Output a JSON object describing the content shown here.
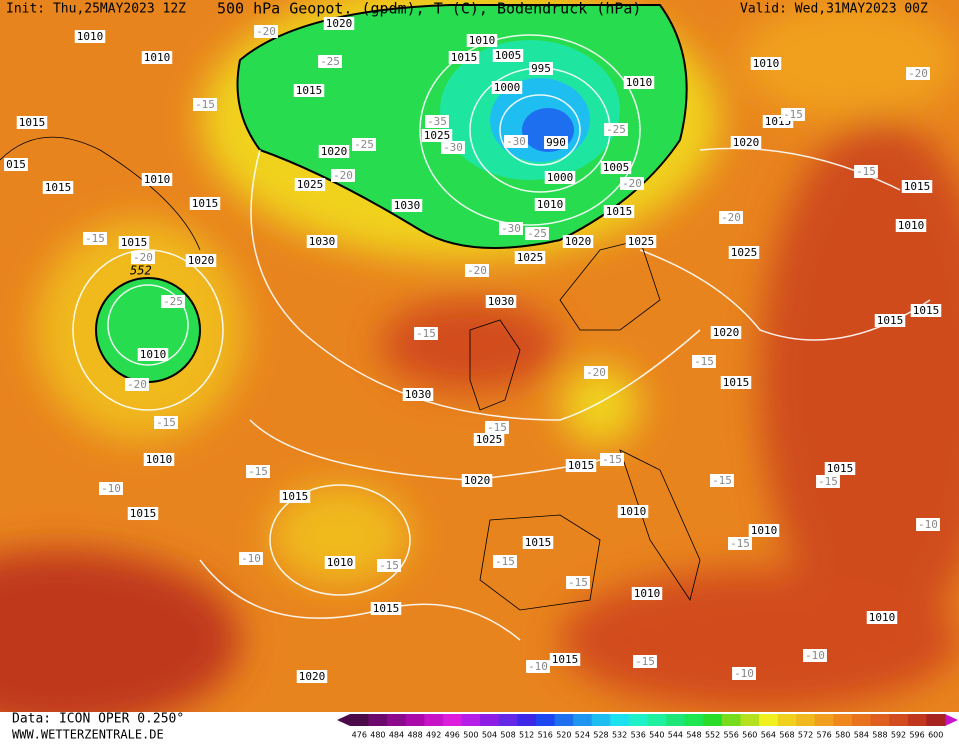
{
  "header": {
    "init": "Init: Thu,25MAY2023 12Z",
    "title": "500 hPa Geopot. (gpdm), T (C), Bodendruck (hPa)",
    "valid": "Valid: Wed,31MAY2023 00Z"
  },
  "footer": {
    "data": "Data: ICON OPER 0.250°",
    "site": "WWW.WETTERZENTRALE.DE"
  },
  "colorbar": {
    "labels": [
      476,
      480,
      484,
      488,
      492,
      496,
      500,
      504,
      508,
      512,
      516,
      520,
      524,
      528,
      532,
      536,
      540,
      544,
      548,
      552,
      556,
      560,
      564,
      568,
      572,
      576,
      580,
      584,
      588,
      592,
      596,
      600
    ],
    "colors": [
      "#4a0a4a",
      "#6e0a6e",
      "#8c0a8c",
      "#aa0aaa",
      "#c814c8",
      "#dc1edc",
      "#b41ee6",
      "#8c1ee6",
      "#6428e6",
      "#3c28e6",
      "#1e46f0",
      "#1e6ef0",
      "#1e96f0",
      "#1ebef0",
      "#1ee1f0",
      "#1ef0c8",
      "#1ef0a0",
      "#1ee678",
      "#1ee650",
      "#28dc28",
      "#78dc1e",
      "#b4e11e",
      "#f0f01e",
      "#f0d21e",
      "#f0b91e",
      "#f0a01e",
      "#f0871e",
      "#e8731e",
      "#de5f1e",
      "#d24b1e",
      "#c0371e",
      "#a8231e"
    ]
  },
  "contour_labels": [
    552
  ],
  "isobar_labels": [
    1010,
    1010,
    1015,
    "015",
    1015,
    1010,
    1015,
    1015,
    1020,
    1010,
    1010,
    1015,
    1015,
    1010,
    1015,
    1020,
    1020,
    1015,
    1025,
    1020,
    1025,
    1030,
    1030,
    1010,
    1015,
    1005,
    995,
    1000,
    990,
    1000,
    1010,
    1015,
    1005,
    1010,
    1010,
    1015,
    1020,
    1015,
    1010,
    1025,
    1025,
    1020,
    1025,
    1030,
    1030,
    1025,
    1020,
    1020,
    1015,
    1015,
    1015,
    1015,
    1015,
    1010,
    1015,
    1010,
    1010,
    1010,
    1015
  ],
  "temperature_labels": [
    -20,
    -25,
    -15,
    -35,
    -30,
    -25,
    -20,
    -30,
    -25,
    -20,
    -30,
    -25,
    -20,
    -15,
    -20,
    -25,
    -20,
    -15,
    -15,
    -10,
    -10,
    -15,
    -15,
    -15,
    -20,
    -15,
    -15,
    -15,
    -15,
    -15,
    -15,
    -15,
    -10,
    -15,
    -10,
    -10,
    -10,
    -15,
    -20,
    -20,
    -15
  ]
}
